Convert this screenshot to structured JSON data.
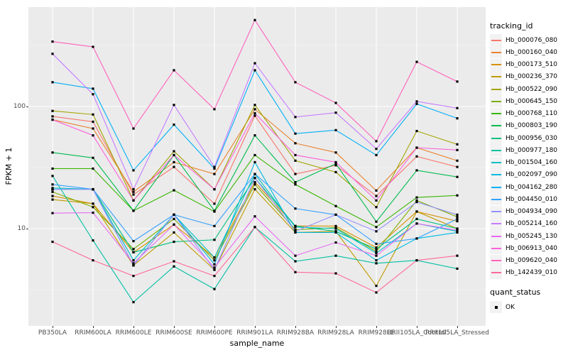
{
  "chart_data": {
    "type": "line",
    "title": "",
    "xlabel": "sample_name",
    "ylabel": "FPKM + 1",
    "y_scale": "log10",
    "y_ticks": [
      10,
      100
    ],
    "y_minor_ticks": [
      3.162,
      31.62,
      316.2
    ],
    "ylim": [
      1.4,
      650
    ],
    "grid": "white-on-gray",
    "legend_position": "right",
    "point_marker": "black-square",
    "categories": [
      "PB350LA",
      "RRIM600LA",
      "RRIM600LE",
      "RRIM600SE",
      "RRIM600PE",
      "RRIM901LA",
      "RRIM928BA",
      "RRIM928LA",
      "RRIM928LE",
      "RRII105LA_Control",
      "RRII105LA_Stressed"
    ],
    "series": [
      {
        "name": "Hb_000076_080",
        "color": "#F8766D",
        "values": [
          83,
          75,
          19,
          32,
          16,
          84,
          28,
          33,
          18.5,
          39,
          32
        ]
      },
      {
        "name": "Hb_000160_040",
        "color": "#EA8331",
        "values": [
          78,
          66,
          20,
          35,
          28,
          95,
          50,
          42,
          20.5,
          46,
          36
        ]
      },
      {
        "name": "Hb_000173_510",
        "color": "#D89000",
        "values": [
          18.5,
          16,
          6.4,
          10.8,
          5.8,
          24,
          10.5,
          10.5,
          7,
          13.8,
          11.5
        ]
      },
      {
        "name": "Hb_000236_370",
        "color": "#C09B00",
        "values": [
          17.3,
          16,
          5,
          9.3,
          4.6,
          21,
          9.3,
          9.5,
          3.4,
          13.8,
          10
        ]
      },
      {
        "name": "Hb_000522_090",
        "color": "#A3A500",
        "values": [
          92,
          86,
          17,
          43,
          21,
          103,
          36,
          29,
          15,
          63,
          49
        ]
      },
      {
        "name": "Hb_000645_150",
        "color": "#7CAE00",
        "values": [
          20,
          15,
          6.8,
          12,
          5.5,
          23,
          9.8,
          10.2,
          6.5,
          17,
          12.5
        ]
      },
      {
        "name": "Hb_000768_110",
        "color": "#39B600",
        "values": [
          31,
          31,
          14,
          20.6,
          13.8,
          40,
          23,
          15.3,
          10.3,
          18,
          18.7
        ]
      },
      {
        "name": "Hb_000803_190",
        "color": "#00BB4E",
        "values": [
          42,
          38,
          14,
          40,
          14,
          58,
          24,
          34,
          11.4,
          30,
          26.5
        ]
      },
      {
        "name": "Hb_000956_030",
        "color": "#00BF7D",
        "values": [
          21,
          21,
          6.4,
          7.8,
          8.1,
          26,
          10.5,
          9.5,
          6.8,
          12,
          10
        ]
      },
      {
        "name": "Hb_000977_180",
        "color": "#00C1A3",
        "values": [
          27,
          8,
          2.5,
          4.9,
          3.2,
          10.3,
          5.4,
          6,
          5.2,
          5.5,
          4.7
        ]
      },
      {
        "name": "Hb_001504_160",
        "color": "#00BFC4",
        "values": [
          21.5,
          21,
          5.5,
          13,
          5.8,
          28,
          10.3,
          10,
          6.3,
          11,
          9.5
        ]
      },
      {
        "name": "Hb_002097_090",
        "color": "#00BAE0",
        "values": [
          21,
          21,
          5,
          13,
          5.1,
          35,
          9.3,
          9.3,
          5.5,
          8.3,
          9.3
        ]
      },
      {
        "name": "Hb_004162_280",
        "color": "#00B0F6",
        "values": [
          158,
          140,
          30,
          71,
          31,
          198,
          60,
          64,
          40,
          105,
          80
        ]
      },
      {
        "name": "Hb_004450_010",
        "color": "#35A2FF",
        "values": [
          23,
          21,
          7.9,
          13,
          10.5,
          28,
          14.6,
          13,
          7.5,
          8.3,
          12
        ]
      },
      {
        "name": "Hb_004934_090",
        "color": "#9590FF",
        "values": [
          21,
          21,
          5,
          13,
          4.6,
          26,
          9.5,
          13,
          9.5,
          16.5,
          13
        ]
      },
      {
        "name": "Hb_005214_160",
        "color": "#C77CFF",
        "values": [
          270,
          126,
          21,
          103,
          32,
          226,
          82,
          89,
          45,
          110,
          97
        ]
      },
      {
        "name": "Hb_005245_130",
        "color": "#E76BF3",
        "values": [
          13.4,
          13.5,
          5.2,
          10.8,
          4.8,
          12.6,
          6,
          7.7,
          6,
          11,
          9.7
        ]
      },
      {
        "name": "Hb_006913_040",
        "color": "#FA62DB",
        "values": [
          78,
          58,
          17,
          40,
          21,
          88,
          40,
          35,
          17,
          46,
          44
        ]
      },
      {
        "name": "Hb_009620_040",
        "color": "#FF62BC",
        "values": [
          340,
          308,
          66,
          198,
          95,
          510,
          158,
          107,
          52,
          232,
          160
        ]
      },
      {
        "name": "Hb_142439_010",
        "color": "#FF6A98",
        "values": [
          7.8,
          5.5,
          4.1,
          5.4,
          4.1,
          10.3,
          4.4,
          4.3,
          3,
          5.5,
          6
        ]
      }
    ]
  },
  "legend": {
    "tracking_title": "tracking_id",
    "quant_title": "quant_status",
    "quant_items": [
      "OK"
    ]
  },
  "style": {
    "panel_bg": "#EBEBEB",
    "grid_color": "#FFFFFF",
    "point_color": "#000000",
    "legend_key_bg": "#F2F2F2",
    "axis_text_color": "#4D4D4D"
  }
}
